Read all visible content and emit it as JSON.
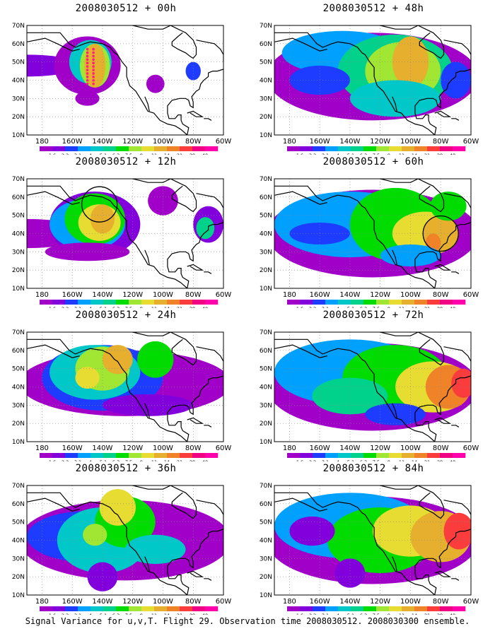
{
  "panels": [
    {
      "title": "2008030512 + 00h",
      "col": 0,
      "row": 0,
      "blobs": "p00",
      "dots": true
    },
    {
      "title": "2008030512 + 12h",
      "col": 0,
      "row": 1,
      "blobs": "p12",
      "circle": "west"
    },
    {
      "title": "2008030512 + 24h",
      "col": 0,
      "row": 2,
      "blobs": "p24"
    },
    {
      "title": "2008030512 + 36h",
      "col": 0,
      "row": 3,
      "blobs": "p36"
    },
    {
      "title": "2008030512 + 48h",
      "col": 1,
      "row": 0,
      "blobs": "p48"
    },
    {
      "title": "2008030512 + 60h",
      "col": 1,
      "row": 1,
      "blobs": "p60",
      "circle": "east"
    },
    {
      "title": "2008030512 + 72h",
      "col": 1,
      "row": 2,
      "blobs": "p72"
    },
    {
      "title": "2008030512 + 84h",
      "col": 1,
      "row": 3,
      "blobs": "p84"
    }
  ],
  "axes": {
    "lat_labels": [
      "70N",
      "60N",
      "50N",
      "40N",
      "30N",
      "20N",
      "10N"
    ],
    "lon_labels": [
      "180",
      "160W",
      "140W",
      "120W",
      "100W",
      "80W",
      "60W"
    ]
  },
  "colorbar": {
    "labels": [
      "1.6",
      "2.2",
      "3.1",
      "4",
      "5.1",
      "6.3",
      "7.5",
      "9",
      "11",
      "14",
      "21",
      "29",
      "40"
    ],
    "colors": [
      "#a000c8",
      "#8200dc",
      "#1e3cff",
      "#00a0ff",
      "#00c8c8",
      "#00d28c",
      "#00dc00",
      "#a0e632",
      "#e6dc32",
      "#e6af2d",
      "#f08228",
      "#fa3c3c",
      "#f00082",
      "#ff00aa"
    ]
  },
  "footer": "Signal Variance for u,v,T. Flight 29. Observation time 2008030512. 2008030300 ensemble."
}
